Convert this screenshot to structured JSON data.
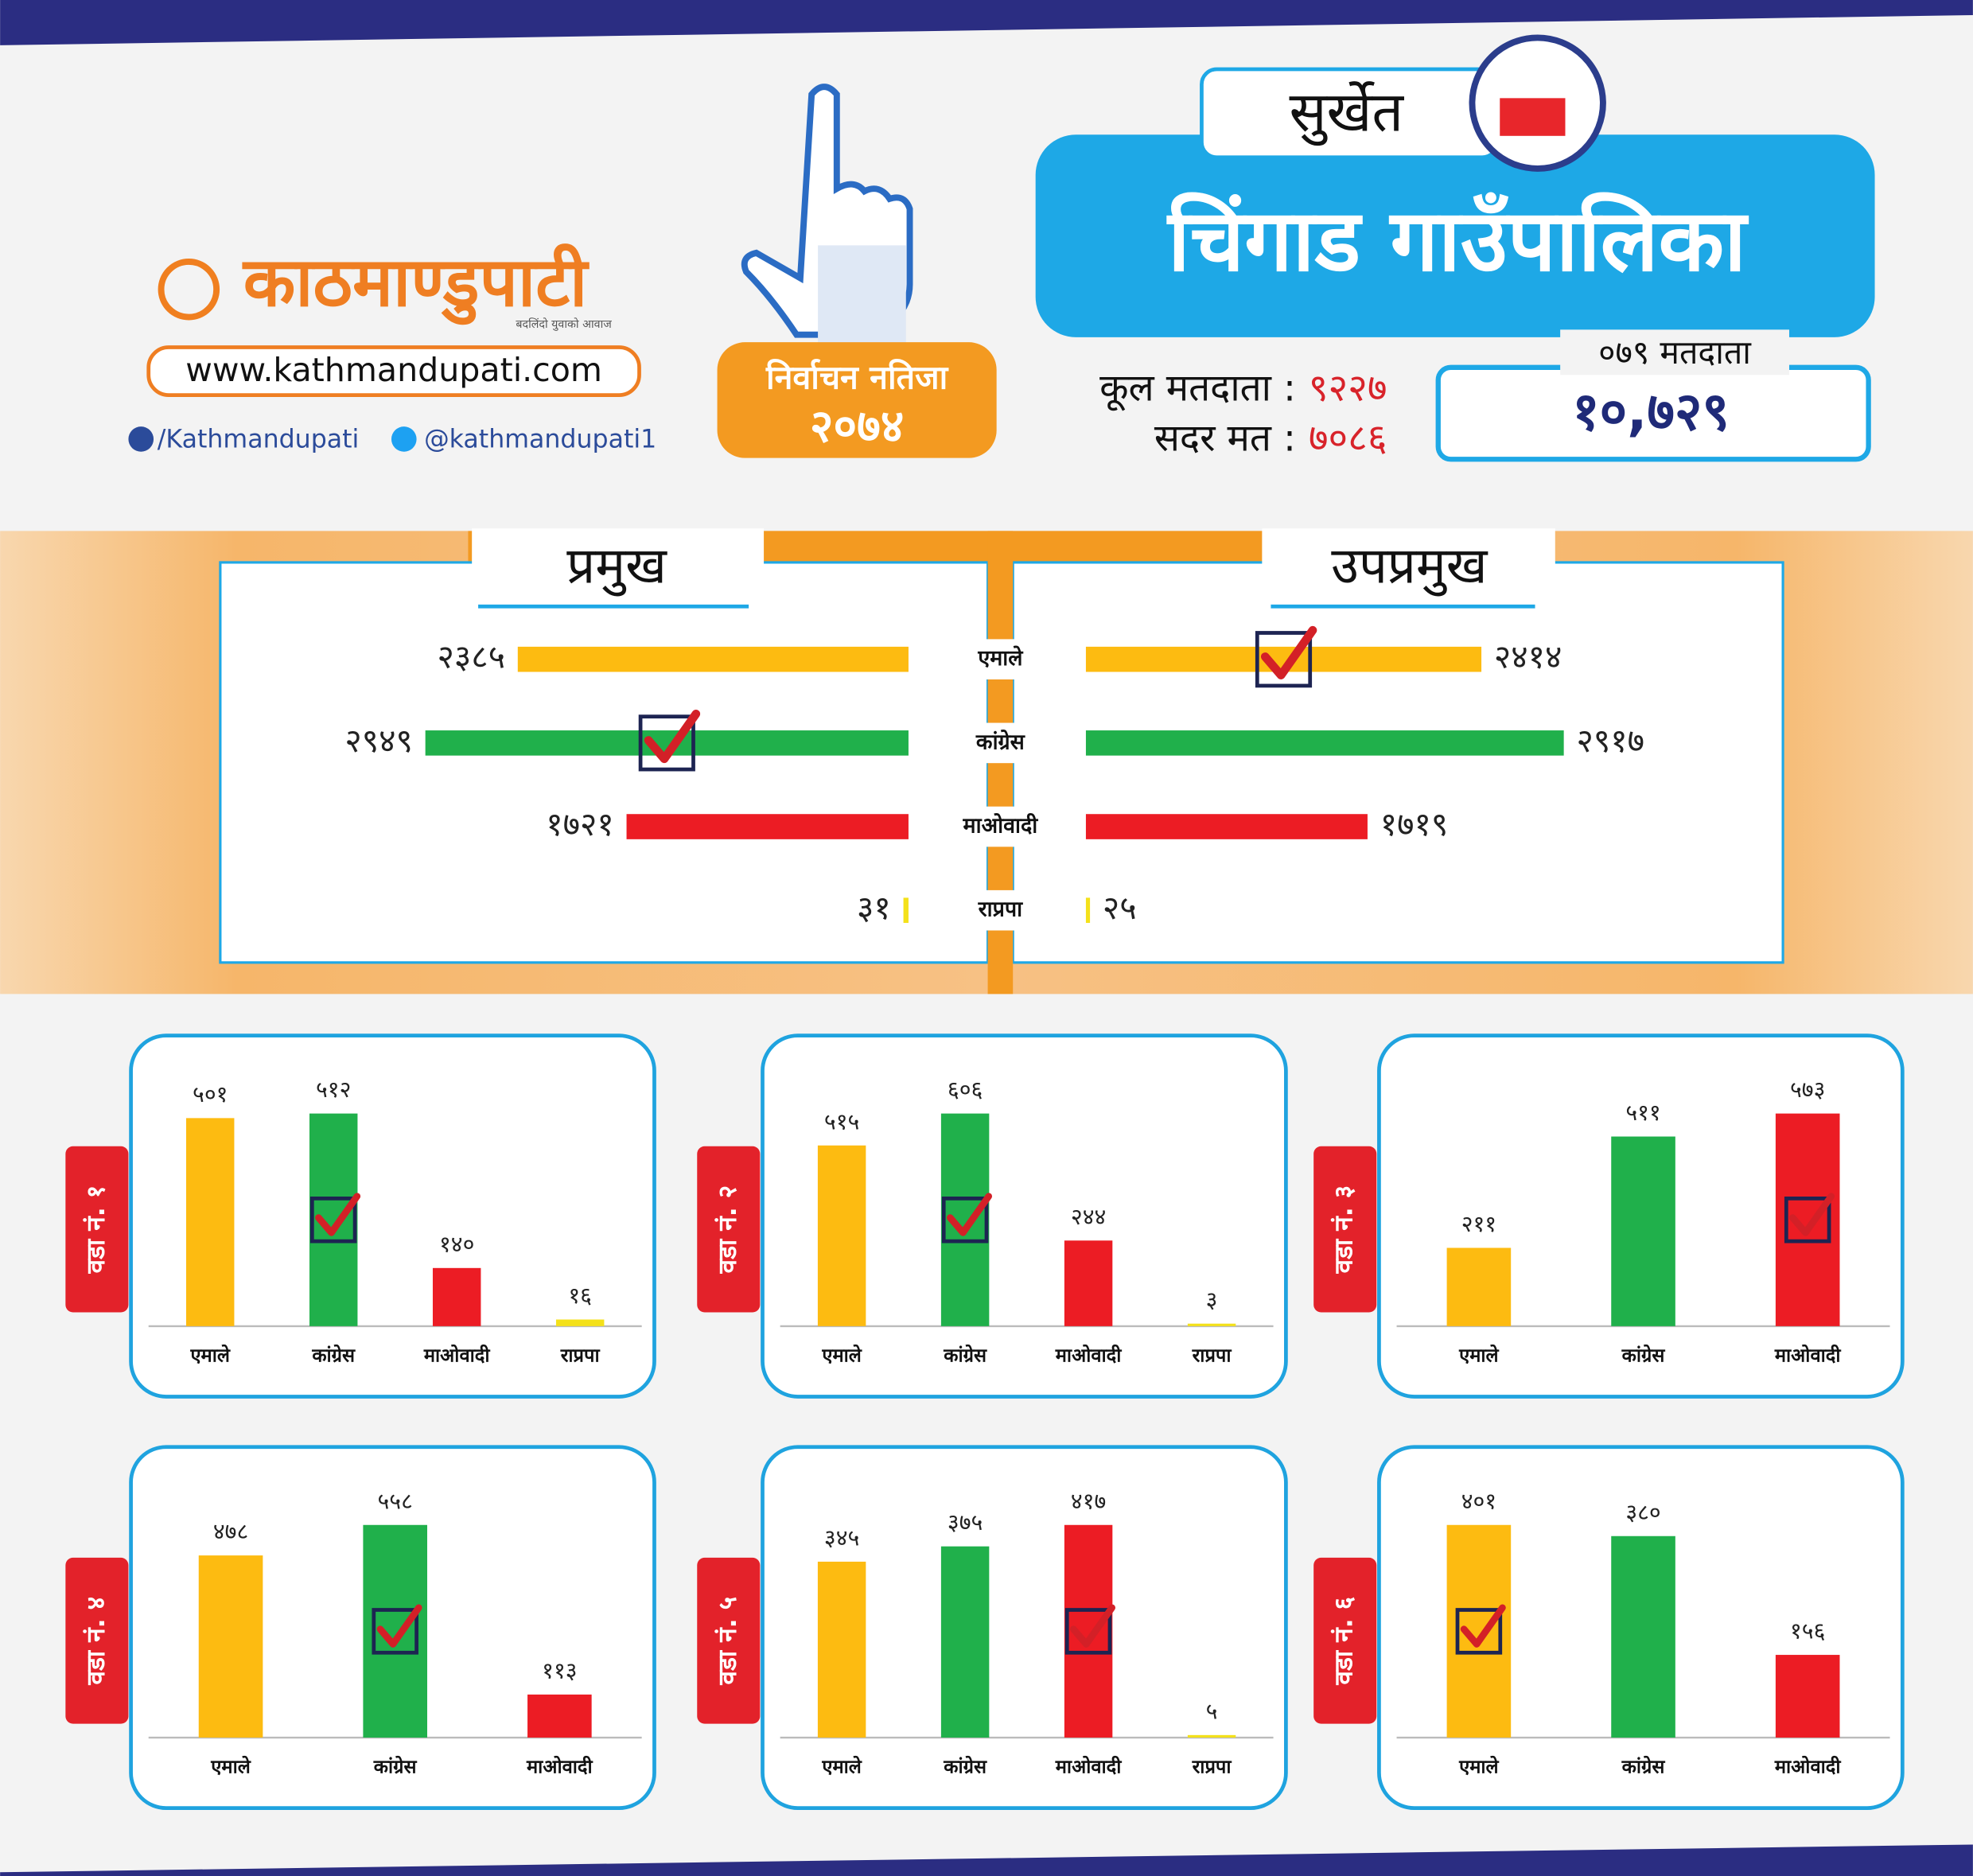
{
  "header": {
    "logo": "काठमाण्डुपाटी",
    "tagline": "बदलिंदो युवाको आवाज",
    "website": "www.kathmandupati.com",
    "facebook": "/Kathmandupati",
    "twitter": "@kathmandupati1",
    "badge": {
      "title": "निर्वाचन नतिजा",
      "year": "२०७४"
    },
    "district": "सुर्खेत",
    "municipality": "चिंगाड गाउँपालिका",
    "stats": [
      {
        "label": "कूल मतदाता :",
        "value": "९२२७"
      },
      {
        "label": "सदर मत :",
        "value": "७०८६"
      }
    ],
    "voters_079": {
      "label": "०७९ मतदाता",
      "value": "१०,७२९"
    }
  },
  "chart_data": [
    {
      "type": "hbar-split",
      "categories": [
        "एमाले",
        "कांग्रेस",
        "माओवादी",
        "राप्रपा"
      ],
      "colors": [
        "#fdbb11",
        "#20b04b",
        "#ec1c24",
        "#f4e11a"
      ],
      "series": [
        {
          "name": "प्रमुख",
          "values": [
            2385,
            2949,
            1721,
            31
          ],
          "value_labels": [
            "२३८५",
            "२९४९",
            "१७२१",
            "३१"
          ],
          "winner": 1
        },
        {
          "name": "उपप्रमुख",
          "values": [
            2414,
            2917,
            1719,
            25
          ],
          "value_labels": [
            "२४१४",
            "२९१७",
            "१७१९",
            "२५"
          ],
          "winner": 0
        }
      ]
    },
    {
      "type": "bar",
      "title": "वडा नं. १",
      "categories": [
        "एमाले",
        "कांग्रेस",
        "माओवादी",
        "राप्रपा"
      ],
      "colors": [
        "#fdbb11",
        "#20b04b",
        "#ec1c24",
        "#f4e11a"
      ],
      "values": [
        501,
        512,
        140,
        16
      ],
      "value_labels": [
        "५०१",
        "५१२",
        "१४०",
        "१६"
      ],
      "winner": 1
    },
    {
      "type": "bar",
      "title": "वडा नं. २",
      "categories": [
        "एमाले",
        "कांग्रेस",
        "माओवादी",
        "राप्रपा"
      ],
      "colors": [
        "#fdbb11",
        "#20b04b",
        "#ec1c24",
        "#f4e11a"
      ],
      "values": [
        515,
        606,
        244,
        3
      ],
      "value_labels": [
        "५१५",
        "६०६",
        "२४४",
        "३"
      ],
      "winner": 1
    },
    {
      "type": "bar",
      "title": "वडा नं. ३",
      "categories": [
        "एमाले",
        "कांग्रेस",
        "माओवादी"
      ],
      "colors": [
        "#fdbb11",
        "#20b04b",
        "#ec1c24"
      ],
      "values": [
        211,
        511,
        573
      ],
      "value_labels": [
        "२११",
        "५११",
        "५७३"
      ],
      "winner": 2
    },
    {
      "type": "bar",
      "title": "वडा नं. ४",
      "categories": [
        "एमाले",
        "कांग्रेस",
        "माओवादी"
      ],
      "colors": [
        "#fdbb11",
        "#20b04b",
        "#ec1c24"
      ],
      "values": [
        478,
        558,
        113
      ],
      "value_labels": [
        "४७८",
        "५५८",
        "११३"
      ],
      "winner": 1
    },
    {
      "type": "bar",
      "title": "वडा नं. ५",
      "categories": [
        "एमाले",
        "कांग्रेस",
        "माओवादी",
        "राप्रपा"
      ],
      "colors": [
        "#fdbb11",
        "#20b04b",
        "#ec1c24",
        "#f4e11a"
      ],
      "values": [
        345,
        375,
        417,
        5
      ],
      "value_labels": [
        "३४५",
        "३७५",
        "४१७",
        "५"
      ],
      "winner": 2
    },
    {
      "type": "bar",
      "title": "वडा नं. ६",
      "categories": [
        "एमाले",
        "कांग्रेस",
        "माओवादी"
      ],
      "colors": [
        "#fdbb11",
        "#20b04b",
        "#ec1c24"
      ],
      "values": [
        401,
        380,
        156
      ],
      "value_labels": [
        "४०१",
        "३८०",
        "१५६"
      ],
      "winner": 0
    }
  ]
}
